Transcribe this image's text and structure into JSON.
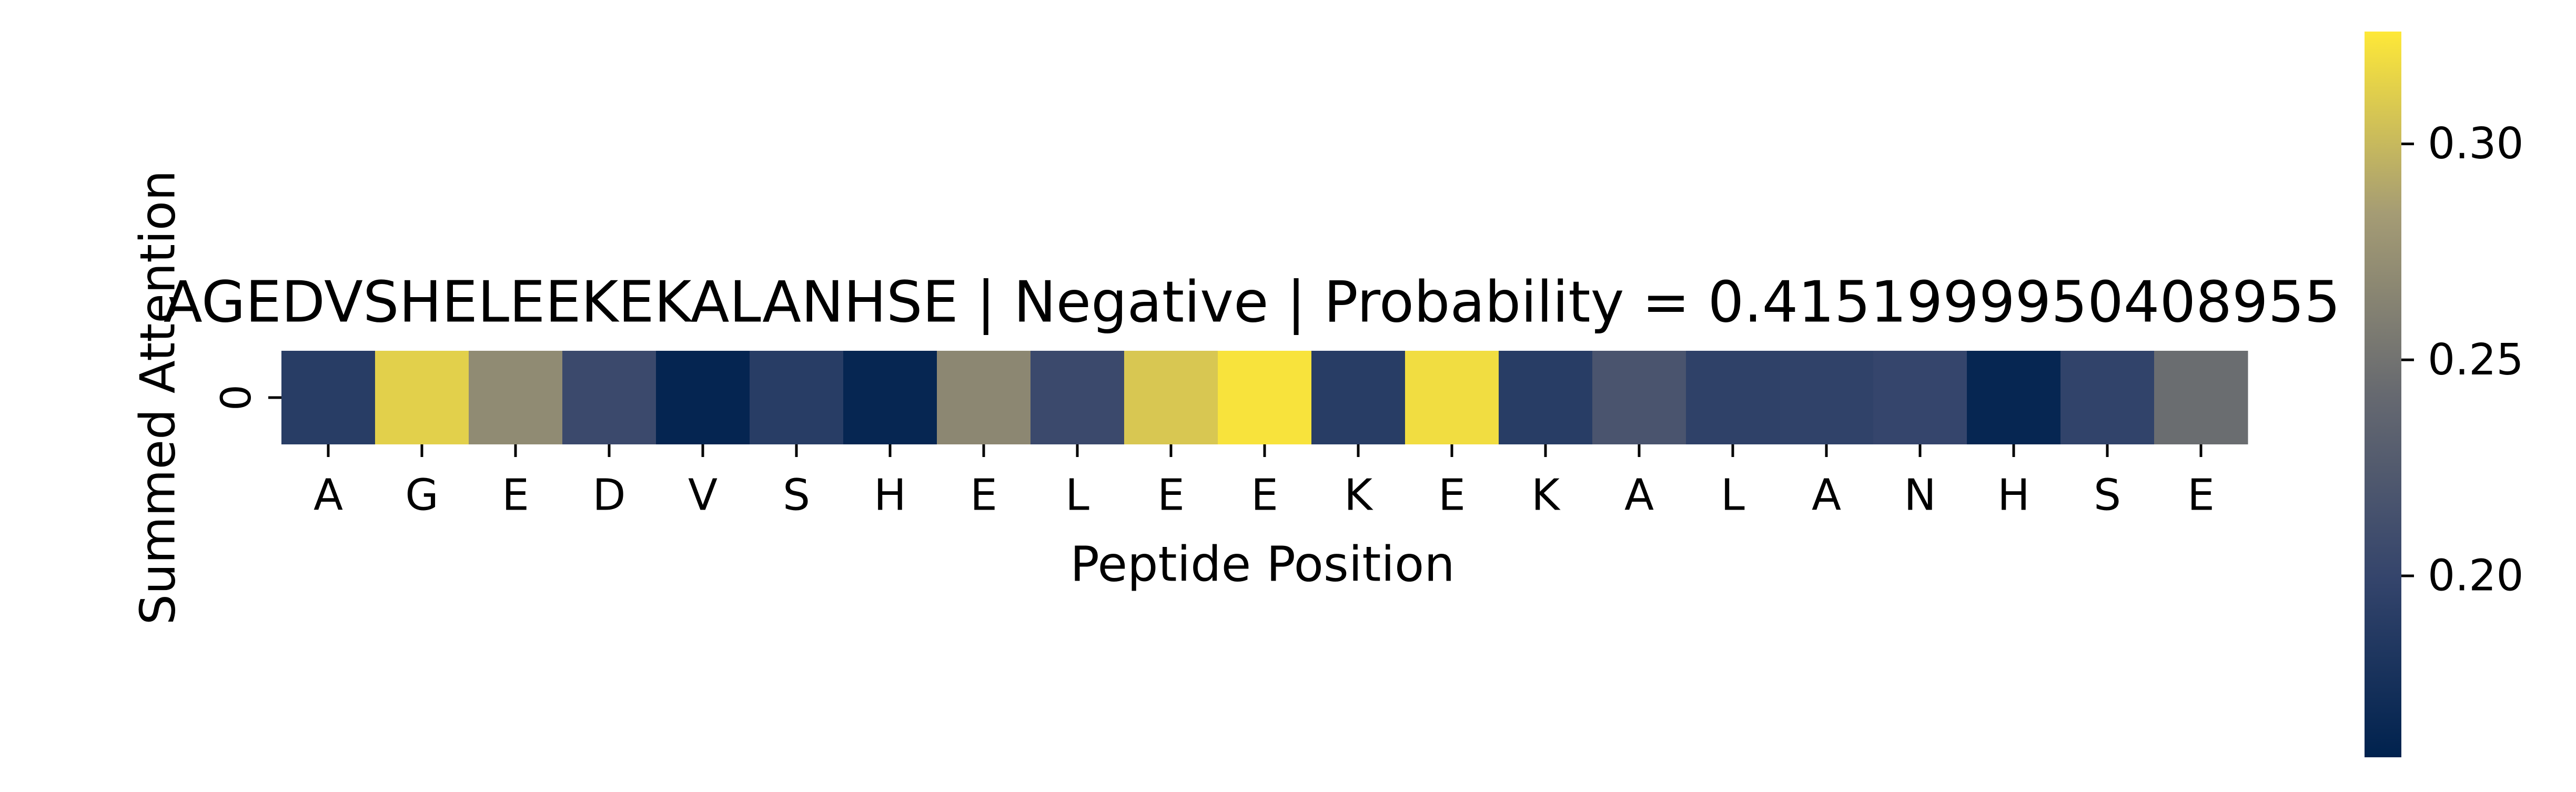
{
  "chart_data": {
    "type": "heatmap",
    "title": "AGEDVSHELEEKEKALANHSE | Negative | Probability = 0.4151999950408955",
    "xlabel": "Peptide Position",
    "ylabel": "Summed Attention",
    "row_labels": [
      "0"
    ],
    "categories": [
      "A",
      "G",
      "E",
      "D",
      "V",
      "S",
      "H",
      "E",
      "L",
      "E",
      "E",
      "K",
      "E",
      "K",
      "A",
      "L",
      "A",
      "N",
      "H",
      "S",
      "E"
    ],
    "values": [
      0.19,
      0.313,
      0.27,
      0.205,
      0.162,
      0.19,
      0.163,
      0.267,
      0.205,
      0.308,
      0.323,
      0.19,
      0.32,
      0.19,
      0.218,
      0.195,
      0.196,
      0.2,
      0.163,
      0.197,
      0.245
    ],
    "colormap": "cividis",
    "colorbar": {
      "range": [
        0.158,
        0.326
      ],
      "ticks": [
        0.2,
        0.25,
        0.3
      ],
      "tick_labels": [
        "0.20",
        "0.25",
        "0.30"
      ]
    },
    "grid": false
  }
}
